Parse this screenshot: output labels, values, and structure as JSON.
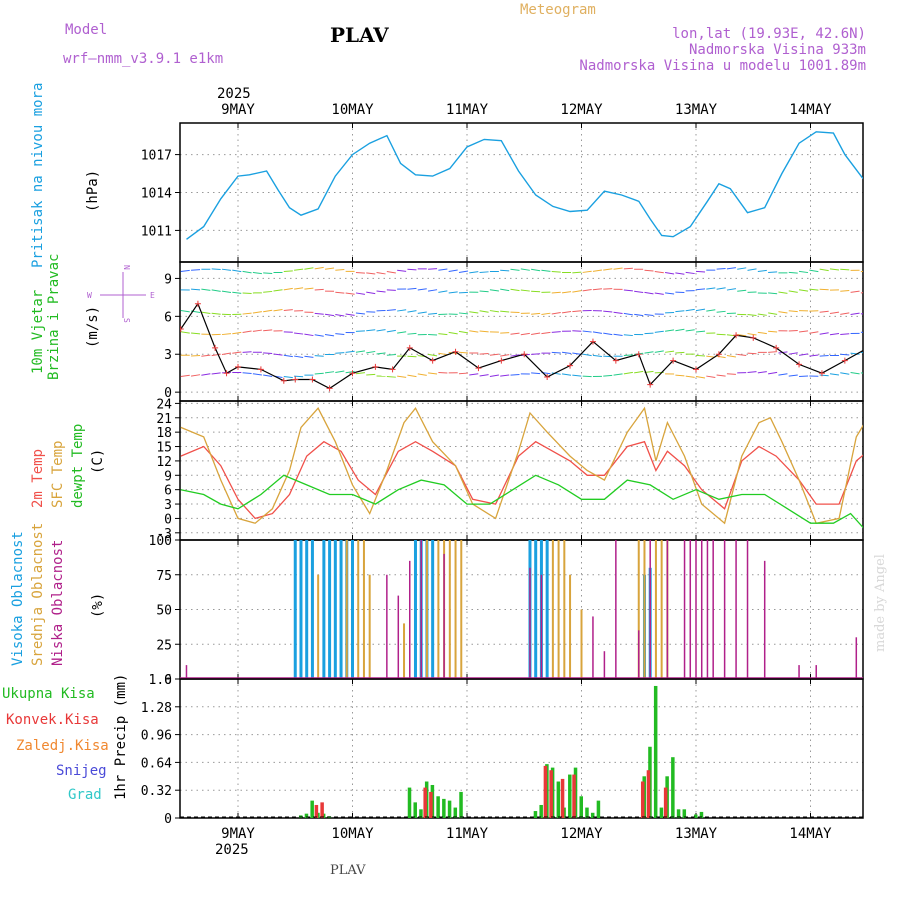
{
  "header": {
    "model_label": "Model",
    "model_name": "wrf—nmm_v3.9.1  e1km",
    "station": "PLAV",
    "meteogram": "Meteogram",
    "lonlat": "lon,lat (19.93E, 42.6N)",
    "altitude": "Nadmorska Visina 933m",
    "model_altitude": "Nadmorska Visina u modelu 1001.89m",
    "footer_station": "PLAV",
    "credit": "made by Angel"
  },
  "colors": {
    "pressure": "#1aa0e0",
    "temp2m": "#f0504a",
    "sfc": "#d8a43c",
    "dew": "#22cc22",
    "high_cloud": "#1aa0e0",
    "mid_cloud": "#d8a43c",
    "low_cloud": "#b0208a",
    "total_precip": "#22bb22",
    "conv_precip": "#e83838",
    "frozen": "#f08830",
    "snow": "#4a4ad8",
    "grad": "#30c8c8",
    "purple_text": "#b060d0",
    "orange_text": "#e0b060"
  },
  "time_axis": {
    "year": "2025",
    "days": [
      "9MAY",
      "10MAY",
      "11MAY",
      "12MAY",
      "13MAY",
      "14MAY"
    ]
  },
  "chart_data": [
    {
      "type": "line",
      "title": "Pritisak na nivou mora",
      "ylabel": "(hPa)",
      "ylim": [
        1008.5,
        1019.5
      ],
      "yticks": [
        1011,
        1014,
        1017
      ],
      "x_unit": "days since 9MAY 00 UTC",
      "series": [
        {
          "name": "Pritisak na nivou mora",
          "x": [
            -0.45,
            -0.3,
            -0.15,
            0,
            0.1,
            0.25,
            0.35,
            0.45,
            0.55,
            0.7,
            0.85,
            1.0,
            1.15,
            1.3,
            1.42,
            1.55,
            1.7,
            1.85,
            2.0,
            2.15,
            2.3,
            2.45,
            2.6,
            2.75,
            2.9,
            3.05,
            3.2,
            3.35,
            3.5,
            3.6,
            3.7,
            3.8,
            3.95,
            4.1,
            4.2,
            4.3,
            4.45,
            4.6,
            4.75,
            4.9,
            5.05,
            5.2,
            5.3,
            5.45,
            5.55
          ],
          "values": [
            1010.3,
            1011.3,
            1013.5,
            1015.3,
            1015.4,
            1015.7,
            1014.2,
            1012.8,
            1012.2,
            1012.7,
            1015.3,
            1017.0,
            1017.9,
            1018.5,
            1016.3,
            1015.4,
            1015.3,
            1015.9,
            1017.6,
            1018.2,
            1018.1,
            1015.7,
            1013.8,
            1012.9,
            1012.5,
            1012.6,
            1014.1,
            1013.8,
            1013.3,
            1011.9,
            1010.6,
            1010.5,
            1011.3,
            1013.3,
            1014.7,
            1014.3,
            1012.4,
            1012.8,
            1015.5,
            1017.9,
            1018.8,
            1018.7,
            1017.0,
            1015.2,
            1014.3
          ]
        }
      ]
    },
    {
      "type": "scatter",
      "title": "10m Vjetar Brzina i Pravac",
      "ylabel": "(m/s)",
      "ylim": [
        -0.7,
        10.3
      ],
      "yticks": [
        0,
        3,
        6,
        9
      ],
      "compass": {
        "n": "N",
        "s": "S",
        "e": "E",
        "w": "W"
      },
      "series": [
        {
          "name": "wind speed",
          "x": [
            -0.5,
            -0.35,
            -0.2,
            -0.1,
            0,
            0.2,
            0.4,
            0.5,
            0.65,
            0.8,
            1.0,
            1.2,
            1.35,
            1.5,
            1.7,
            1.9,
            2.1,
            2.3,
            2.5,
            2.7,
            2.9,
            3.1,
            3.3,
            3.5,
            3.6,
            3.8,
            4.0,
            4.2,
            4.35,
            4.5,
            4.7,
            4.9,
            5.1,
            5.3,
            5.5
          ],
          "values": [
            5.0,
            7.0,
            3.5,
            1.5,
            2.0,
            1.8,
            0.9,
            1.0,
            1.0,
            0.3,
            1.5,
            2.0,
            1.8,
            3.5,
            2.5,
            3.2,
            1.9,
            2.5,
            3.0,
            1.2,
            2.1,
            4.0,
            2.5,
            3.0,
            0.6,
            2.5,
            1.8,
            3.0,
            4.5,
            4.3,
            3.5,
            2.2,
            1.5,
            2.5,
            3.5
          ]
        }
      ]
    },
    {
      "type": "line",
      "ylabel": "(C)",
      "ylim": [
        -4.5,
        24.5
      ],
      "yticks": [
        -3,
        0,
        3,
        6,
        9,
        12,
        15,
        18,
        21,
        24
      ],
      "series": [
        {
          "name": "2m Temp",
          "x": [
            -0.5,
            -0.3,
            -0.15,
            0,
            0.15,
            0.3,
            0.45,
            0.6,
            0.75,
            0.9,
            1.05,
            1.2,
            1.4,
            1.55,
            1.7,
            1.9,
            2.05,
            2.25,
            2.45,
            2.6,
            2.75,
            2.9,
            3.05,
            3.2,
            3.4,
            3.55,
            3.65,
            3.75,
            3.9,
            4.05,
            4.25,
            4.4,
            4.55,
            4.7,
            4.9,
            5.05,
            5.25,
            5.4,
            5.5
          ],
          "values": [
            13,
            15,
            11,
            4,
            0,
            1,
            5,
            13,
            16,
            14,
            8,
            5,
            14,
            16,
            14,
            11,
            4,
            3,
            13,
            16,
            14,
            12,
            9,
            9,
            15,
            16,
            10,
            14,
            11,
            6,
            2,
            12,
            15,
            13,
            8,
            3,
            3,
            12,
            14
          ]
        },
        {
          "name": "SFC Temp",
          "x": [
            -0.5,
            -0.3,
            -0.15,
            0,
            0.15,
            0.3,
            0.45,
            0.55,
            0.7,
            0.85,
            1.0,
            1.15,
            1.3,
            1.45,
            1.55,
            1.7,
            1.9,
            2.05,
            2.25,
            2.45,
            2.55,
            2.7,
            2.9,
            3.05,
            3.2,
            3.4,
            3.55,
            3.65,
            3.75,
            3.9,
            4.05,
            4.25,
            4.4,
            4.55,
            4.65,
            4.75,
            4.9,
            5.05,
            5.25,
            5.4,
            5.5
          ],
          "values": [
            19,
            17,
            8,
            0,
            -1,
            2,
            10,
            19,
            23,
            16,
            7,
            1,
            10,
            20,
            23,
            16,
            11,
            3,
            0,
            14,
            22,
            18,
            13,
            10,
            8,
            18,
            23,
            12,
            20,
            13,
            3,
            -1,
            13,
            20,
            21,
            16,
            8,
            -1,
            0,
            17,
            21
          ]
        },
        {
          "name": "dewpt Temp",
          "x": [
            -0.5,
            -0.3,
            -0.15,
            0,
            0.2,
            0.4,
            0.6,
            0.8,
            1.0,
            1.2,
            1.4,
            1.6,
            1.8,
            2.0,
            2.2,
            2.4,
            2.6,
            2.8,
            3.0,
            3.2,
            3.4,
            3.6,
            3.8,
            4.0,
            4.2,
            4.4,
            4.6,
            4.8,
            5.0,
            5.2,
            5.35,
            5.5
          ],
          "values": [
            6,
            5,
            3,
            2,
            5,
            9,
            7,
            5,
            5,
            3,
            6,
            8,
            7,
            3,
            3,
            6,
            9,
            7,
            4,
            4,
            8,
            7,
            4,
            6,
            4,
            5,
            5,
            2,
            -1,
            -1,
            1,
            -3
          ]
        }
      ]
    },
    {
      "type": "bar",
      "ylabel": "(%)",
      "ylim": [
        0,
        100
      ],
      "yticks": [
        0,
        25,
        50,
        75,
        100
      ],
      "series": [
        {
          "name": "Visoka Oblacnost",
          "x": [
            0.5,
            0.55,
            0.6,
            0.65,
            0.75,
            0.8,
            0.85,
            0.9,
            0.95,
            1.0,
            1.55,
            1.6,
            1.65,
            1.7,
            2.55,
            2.6,
            2.65,
            2.7,
            3.55,
            3.6
          ],
          "values": [
            100,
            100,
            100,
            100,
            100,
            100,
            100,
            100,
            100,
            100,
            100,
            100,
            100,
            100,
            100,
            100,
            100,
            100,
            75,
            80
          ]
        },
        {
          "name": "Srednja Oblacnost",
          "x": [
            0.7,
            0.95,
            1.05,
            1.1,
            1.15,
            1.45,
            1.65,
            1.75,
            1.8,
            1.85,
            1.9,
            1.95,
            2.75,
            2.8,
            2.85,
            2.9,
            3.0,
            3.5,
            3.55,
            3.65,
            3.7,
            3.75
          ],
          "values": [
            75,
            100,
            100,
            100,
            75,
            40,
            100,
            100,
            100,
            100,
            100,
            100,
            100,
            100,
            100,
            75,
            50,
            100,
            100,
            100,
            100,
            100
          ],
          "note": "mid"
        },
        {
          "name": "Niska Oblacnost",
          "x": [
            -0.45,
            1.3,
            1.4,
            1.5,
            1.6,
            1.8,
            2.55,
            2.65,
            3.1,
            3.2,
            3.3,
            3.5,
            3.6,
            3.75,
            3.9,
            3.95,
            4.0,
            4.05,
            4.1,
            4.15,
            4.25,
            4.35,
            4.45,
            4.6,
            4.9,
            5.05,
            5.4
          ],
          "values": [
            10,
            75,
            60,
            85,
            100,
            90,
            80,
            75,
            45,
            20,
            100,
            35,
            100,
            100,
            100,
            100,
            100,
            100,
            100,
            100,
            100,
            100,
            100,
            85,
            10,
            10,
            30
          ]
        }
      ]
    },
    {
      "type": "bar",
      "ylabel": "1hr Precip (mm)",
      "ylim": [
        0,
        1.6
      ],
      "yticks": [
        0,
        0.32,
        0.64,
        0.96,
        1.28,
        1.6
      ],
      "series": [
        {
          "name": "Ukupna Kisa",
          "x": [
            0.55,
            0.6,
            0.65,
            0.7,
            0.75,
            0.8,
            1.5,
            1.55,
            1.6,
            1.65,
            1.7,
            1.75,
            1.8,
            1.85,
            1.9,
            1.95,
            2.6,
            2.65,
            2.7,
            2.75,
            2.8,
            2.85,
            2.9,
            2.95,
            3.0,
            3.05,
            3.1,
            3.15,
            3.55,
            3.6,
            3.65,
            3.7,
            3.75,
            3.8,
            3.85,
            3.9,
            4.0,
            4.05
          ],
          "values": [
            0.03,
            0.05,
            0.2,
            0.06,
            0.05,
            0.02,
            0.35,
            0.18,
            0.1,
            0.42,
            0.38,
            0.25,
            0.22,
            0.2,
            0.12,
            0.3,
            0.08,
            0.15,
            0.62,
            0.58,
            0.42,
            0.12,
            0.5,
            0.58,
            0.25,
            0.12,
            0.06,
            0.2,
            0.48,
            0.82,
            1.52,
            0.12,
            0.48,
            0.7,
            0.1,
            0.1,
            0.04,
            0.07
          ]
        },
        {
          "name": "Konvek.Kisa",
          "x": [
            0.7,
            0.75,
            1.65,
            1.7,
            2.7,
            2.75,
            2.85,
            2.95,
            3.55,
            3.6,
            3.75
          ],
          "values": [
            0.15,
            0.18,
            0.35,
            0.3,
            0.6,
            0.55,
            0.45,
            0.5,
            0.42,
            0.55,
            0.35
          ]
        }
      ]
    }
  ],
  "labels": {
    "pressure": "Pritisak na nivou mora",
    "pressure_unit": "(hPa)",
    "wind_a": "10m Vjetar",
    "wind_b": "Brzina i Pravac",
    "wind_unit": "(m/s)",
    "t2m": "2m Temp",
    "sfc": "SFC Temp",
    "dew": "dewpt Temp",
    "temp_unit": "(C)",
    "high_cloud": "Visoka Oblacnost",
    "mid_cloud": "Srednja Oblacnost",
    "low_cloud": "Niska Oblacnost",
    "cloud_unit": "(%)",
    "tot": "Ukupna Kisa",
    "conv": "Konvek.Kisa",
    "frozen": "Zaledj.Kisa",
    "snow": "Snijeg",
    "grad": "Grad",
    "precip_unit": "1hr Precip (mm)"
  }
}
